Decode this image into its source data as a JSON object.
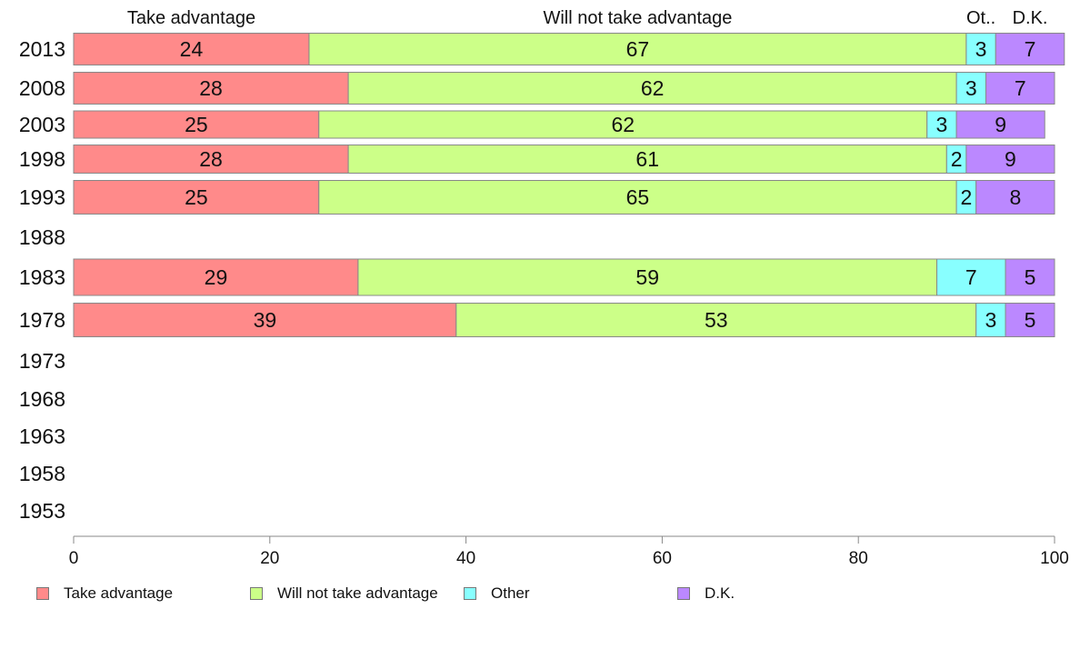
{
  "chart_data": {
    "type": "bar",
    "orientation": "horizontal",
    "stacked": true,
    "categories": [
      "2013",
      "2008",
      "2003",
      "1998",
      "1993",
      "1988",
      "1983",
      "1978",
      "1973",
      "1968",
      "1963",
      "1958",
      "1953"
    ],
    "series": [
      {
        "name": "Take advantage",
        "color": "#ff8a8a",
        "values": [
          24,
          28,
          25,
          28,
          25,
          null,
          29,
          39,
          null,
          null,
          null,
          null,
          null
        ]
      },
      {
        "name": "Will not take advantage",
        "color": "#ccff88",
        "values": [
          67,
          62,
          62,
          61,
          65,
          null,
          59,
          53,
          null,
          null,
          null,
          null,
          null
        ]
      },
      {
        "name": "Other",
        "color": "#88ffff",
        "values": [
          3,
          3,
          3,
          2,
          2,
          null,
          7,
          3,
          null,
          null,
          null,
          null,
          null
        ]
      },
      {
        "name": "D.K.",
        "color": "#bb88ff",
        "values": [
          7,
          7,
          9,
          9,
          8,
          null,
          5,
          5,
          null,
          null,
          null,
          null,
          null
        ]
      }
    ],
    "top_labels": [
      "Take advantage",
      "Will not take advantage",
      "Ot..",
      "D.K."
    ],
    "xlim": [
      0,
      100
    ],
    "xticks": [
      0,
      20,
      40,
      60,
      80,
      100
    ],
    "grid": false,
    "legend_position": "bottom"
  }
}
